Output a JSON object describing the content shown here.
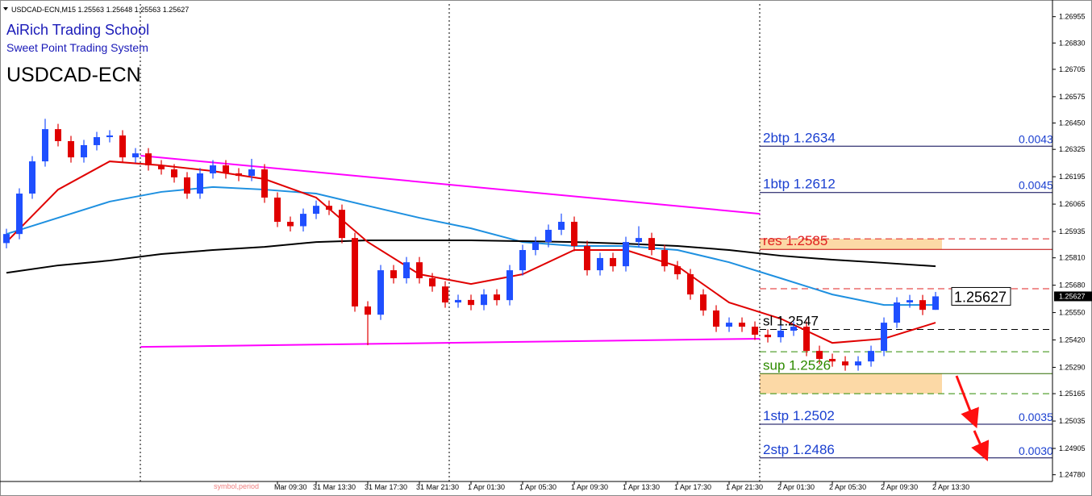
{
  "header": {
    "symbol": "USDCAD-ECN,M15"
  },
  "chart_data": {
    "type": "candlestick",
    "title": "AiRich Trading School",
    "subtitle": "Sweet Point Trading System",
    "label": "USDCAD-ECN",
    "watermark": "symbol,period",
    "up_color": "#1f4fff",
    "down_color": "#e00000",
    "open": [
      1.2588,
      1.25923,
      1.26115,
      1.26268,
      1.26421,
      1.26364,
      1.26287,
      1.26345,
      1.26383,
      1.26391,
      1.26287,
      1.26306,
      1.26249,
      1.2623,
      1.26192,
      1.26115,
      1.26211,
      1.26249,
      1.26211,
      1.26199,
      1.2623,
      1.26096,
      1.25981,
      1.2596,
      1.26019,
      1.26057,
      1.26038,
      1.25904,
      1.25579,
      1.2554,
      1.25751,
      1.25713,
      1.25789,
      1.25713,
      1.25674,
      1.25598,
      1.2561,
      1.25586,
      1.25636,
      1.25609,
      1.25751,
      1.25847,
      1.25885,
      1.25943,
      1.25981,
      1.25866,
      1.25751,
      1.25809,
      1.2577,
      1.25885,
      1.25904,
      1.25847,
      1.2577,
      1.25732,
      1.25636,
      1.2556,
      1.25483,
      1.25502,
      1.25483,
      1.25445,
      1.25433,
      1.25464,
      1.25483,
      1.25368,
      1.2533,
      1.25318,
      1.25299,
      1.25318,
      1.25368,
      1.25502,
      1.25598,
      1.25609,
      1.25563
    ],
    "high": [
      1.25948,
      1.2614,
      1.26293,
      1.2647,
      1.26446,
      1.26389,
      1.2637,
      1.26408,
      1.26416,
      1.26416,
      1.26331,
      1.26331,
      1.26274,
      1.26255,
      1.26217,
      1.26236,
      1.26274,
      1.26274,
      1.26236,
      1.2628,
      1.26255,
      1.26121,
      1.26006,
      1.26044,
      1.26082,
      1.26082,
      1.26063,
      1.25929,
      1.25604,
      1.25776,
      1.25776,
      1.25814,
      1.25814,
      1.25738,
      1.25699,
      1.25635,
      1.25635,
      1.25661,
      1.25661,
      1.25776,
      1.25872,
      1.2591,
      1.25968,
      1.2602,
      1.26006,
      1.25891,
      1.25834,
      1.25834,
      1.2591,
      1.2596,
      1.25929,
      1.25872,
      1.25795,
      1.25757,
      1.25661,
      1.25585,
      1.25527,
      1.25527,
      1.25508,
      1.2547,
      1.25489,
      1.25508,
      1.25508,
      1.25393,
      1.25355,
      1.25343,
      1.25343,
      1.25393,
      1.25527,
      1.25623,
      1.25634,
      1.25634,
      1.25648
    ],
    "low": [
      1.25855,
      1.25898,
      1.2609,
      1.26243,
      1.26339,
      1.26262,
      1.26262,
      1.2632,
      1.26358,
      1.26262,
      1.26262,
      1.26224,
      1.26205,
      1.26167,
      1.2609,
      1.2609,
      1.26186,
      1.26186,
      1.26174,
      1.26174,
      1.26071,
      1.25956,
      1.25935,
      1.25935,
      1.25994,
      1.26013,
      1.25879,
      1.25554,
      1.25395,
      1.25515,
      1.25688,
      1.25688,
      1.25688,
      1.25649,
      1.25573,
      1.25573,
      1.25561,
      1.25561,
      1.25584,
      1.25584,
      1.25726,
      1.25822,
      1.2586,
      1.25918,
      1.25841,
      1.25726,
      1.25726,
      1.25745,
      1.25745,
      1.2586,
      1.25822,
      1.25745,
      1.25707,
      1.25611,
      1.25535,
      1.25458,
      1.25458,
      1.25458,
      1.2542,
      1.25408,
      1.25408,
      1.25439,
      1.25343,
      1.25305,
      1.25293,
      1.25274,
      1.25274,
      1.25293,
      1.25343,
      1.25477,
      1.25573,
      1.25538,
      1.25563
    ],
    "close": [
      1.25923,
      1.26115,
      1.26268,
      1.26421,
      1.26364,
      1.26287,
      1.26345,
      1.26383,
      1.26391,
      1.26287,
      1.26306,
      1.26249,
      1.2623,
      1.26192,
      1.26115,
      1.26211,
      1.26249,
      1.26211,
      1.26199,
      1.2623,
      1.26096,
      1.25981,
      1.2596,
      1.26019,
      1.26057,
      1.26038,
      1.25904,
      1.25579,
      1.2554,
      1.25751,
      1.25713,
      1.25789,
      1.25713,
      1.25674,
      1.25598,
      1.2561,
      1.25586,
      1.25636,
      1.25609,
      1.25751,
      1.25847,
      1.25885,
      1.25943,
      1.25981,
      1.25866,
      1.25751,
      1.25809,
      1.2577,
      1.25885,
      1.25904,
      1.25847,
      1.2577,
      1.25732,
      1.25636,
      1.2556,
      1.25483,
      1.25502,
      1.25483,
      1.25445,
      1.25433,
      1.25464,
      1.25483,
      1.25368,
      1.2533,
      1.25318,
      1.25299,
      1.25318,
      1.25368,
      1.25502,
      1.25598,
      1.25609,
      1.25563,
      1.25627
    ],
    "moving_averages": [
      {
        "color": "#1e90e0",
        "x": [
          0,
          4,
          8,
          12,
          16,
          20,
          24,
          28,
          32,
          36,
          40,
          44,
          48,
          52,
          56,
          60,
          64,
          68,
          72
        ],
        "values": [
          1.25923,
          1.26,
          1.26077,
          1.26123,
          1.26146,
          1.26134,
          1.26115,
          1.26057,
          1.26,
          1.2595,
          1.25885,
          1.25866,
          1.25866,
          1.25847,
          1.25789,
          1.25713,
          1.25636,
          1.25586,
          1.25586
        ]
      },
      {
        "color": "#000000",
        "x": [
          0,
          4,
          8,
          12,
          16,
          20,
          24,
          28,
          32,
          36,
          40,
          44,
          48,
          52,
          56,
          60,
          64,
          68,
          72
        ],
        "values": [
          1.25739,
          1.25774,
          1.25797,
          1.25828,
          1.25847,
          1.25862,
          1.25885,
          1.25893,
          1.25893,
          1.25893,
          1.25889,
          1.25885,
          1.25877,
          1.25866,
          1.25847,
          1.2582,
          1.25801,
          1.25786,
          1.2577
        ]
      },
      {
        "color": "#e00000",
        "x": [
          0,
          4,
          8,
          12,
          16,
          20,
          24,
          28,
          32,
          36,
          40,
          44,
          48,
          52,
          56,
          60,
          64,
          68,
          72
        ],
        "values": [
          1.25885,
          1.26134,
          1.26268,
          1.26249,
          1.26222,
          1.26184,
          1.26096,
          1.25885,
          1.25732,
          1.25686,
          1.25732,
          1.25847,
          1.25847,
          1.2577,
          1.25598,
          1.25521,
          1.25406,
          1.25426,
          1.25502
        ]
      }
    ],
    "trendlines": [
      {
        "color": "#ff00ff",
        "x": [
          10.4,
          58.4
        ],
        "values": [
          1.26295,
          1.26019
        ]
      },
      {
        "color": "#ff00ff",
        "x": [
          10.4,
          58.4
        ],
        "values": [
          1.25387,
          1.25426
        ]
      }
    ],
    "zones": [
      {
        "from": 1.2585,
        "to": 1.259,
        "color": "#fcd9a6"
      },
      {
        "from": 1.25165,
        "to": 1.2526,
        "color": "#fcd9a6"
      }
    ],
    "dashed_levels": [
      {
        "value": 1.259,
        "color": "#e02020"
      },
      {
        "value": 1.25663,
        "color": "#e02020"
      },
      {
        "value": 1.25364,
        "color": "#2e8b00"
      },
      {
        "value": 1.25165,
        "color": "#2e8b00"
      }
    ],
    "levels": [
      {
        "label": "2btp 1.2634",
        "value": 1.2634,
        "text_color": "#1a3fd0",
        "line_color": "#000050",
        "distance": "0.0043"
      },
      {
        "label": "1btp 1.2612",
        "value": 1.2612,
        "text_color": "#1a3fd0",
        "line_color": "#000050",
        "distance": "0.0045"
      },
      {
        "label": "res 1.2585",
        "value": 1.2585,
        "text_color": "#e02020",
        "line_color": "#c00000"
      },
      {
        "label": "sl 1.2547",
        "value": 1.2547,
        "text_color": "#000000",
        "line_color": "#000000",
        "dashed": true
      },
      {
        "label": "sup 1.2526",
        "value": 1.2526,
        "text_color": "#2e8b00",
        "line_color": "#2e6b00"
      },
      {
        "label": "1stp 1.2502",
        "value": 1.2502,
        "text_color": "#1a3fd0",
        "line_color": "#000050",
        "distance": "0.0035"
      },
      {
        "label": "2stp 1.2486",
        "value": 1.2486,
        "text_color": "#1a3fd0",
        "line_color": "#000050",
        "distance": "0.0030"
      }
    ],
    "xlim": [
      -0.5,
      81.06
    ],
    "ylim": [
      1.24748,
      1.27015
    ],
    "xticks": [
      {
        "value": 21,
        "label": "Mar 09:30"
      },
      {
        "value": 24,
        "label": "31 Mar 13:30"
      },
      {
        "value": 28,
        "label": "31 Mar 17:30"
      },
      {
        "value": 32,
        "label": "31 Mar 21:30"
      },
      {
        "value": 36,
        "label": "1 Apr 01:30"
      },
      {
        "value": 40,
        "label": "1 Apr 05:30"
      },
      {
        "value": 44,
        "label": "1 Apr 09:30"
      },
      {
        "value": 48,
        "label": "1 Apr 13:30"
      },
      {
        "value": 52,
        "label": "1 Apr 17:30"
      },
      {
        "value": 56,
        "label": "1 Apr 21:30"
      },
      {
        "value": 60,
        "label": "2 Apr 01:30"
      },
      {
        "value": 64,
        "label": "2 Apr 05:30"
      },
      {
        "value": 68,
        "label": "2 Apr 09:30"
      },
      {
        "value": 72,
        "label": "2 Apr 13:30"
      }
    ],
    "yticks": [
      {
        "value": 1.26955,
        "label": "1.26955"
      },
      {
        "value": 1.2683,
        "label": "1.26830"
      },
      {
        "value": 1.26705,
        "label": "1.26705"
      },
      {
        "value": 1.26575,
        "label": "1.26575"
      },
      {
        "value": 1.2645,
        "label": "1.26450"
      },
      {
        "value": 1.26325,
        "label": "1.26325"
      },
      {
        "value": 1.26195,
        "label": "1.26195"
      },
      {
        "value": 1.26065,
        "label": "1.26065"
      },
      {
        "value": 1.25935,
        "label": "1.25935"
      },
      {
        "value": 1.2581,
        "label": "1.25810"
      },
      {
        "value": 1.2568,
        "label": "1.25680"
      },
      {
        "value": 1.2555,
        "label": "1.25550"
      },
      {
        "value": 1.2542,
        "label": "1.25420"
      },
      {
        "value": 1.2529,
        "label": "1.25290"
      },
      {
        "value": 1.25165,
        "label": "1.25165"
      },
      {
        "value": 1.25035,
        "label": "1.25035"
      },
      {
        "value": 1.24905,
        "label": "1.24905"
      },
      {
        "value": 1.2478,
        "label": "1.24780"
      }
    ]
  }
}
